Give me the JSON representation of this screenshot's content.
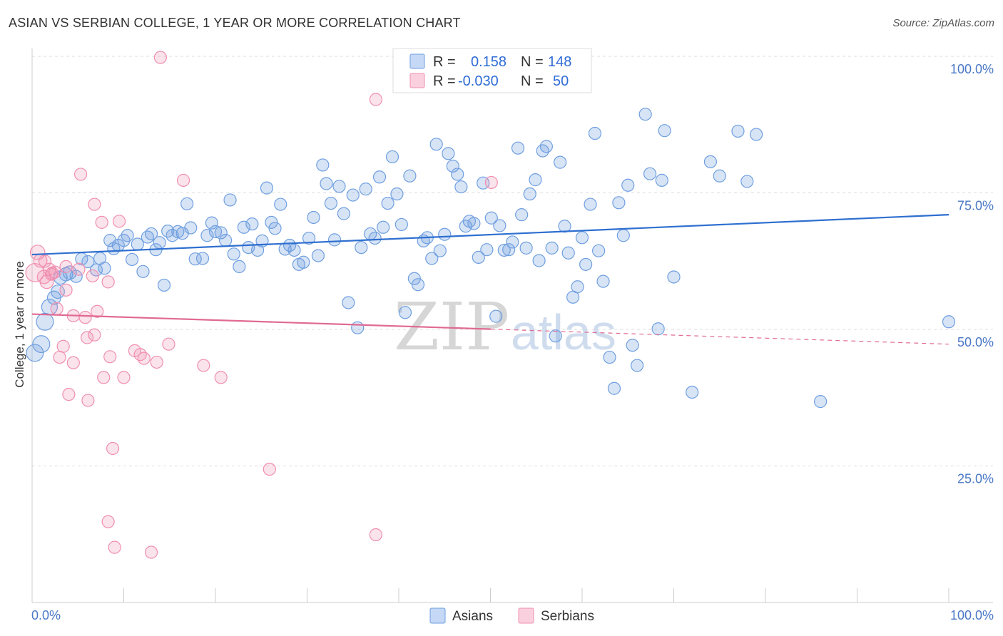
{
  "title": "ASIAN VS SERBIAN COLLEGE, 1 YEAR OR MORE CORRELATION CHART",
  "source": "Source: ZipAtlas.com",
  "watermark": {
    "zip": "ZIP",
    "atlas": "atlas"
  },
  "legend_top": {
    "r_label": "R =",
    "n_label": "N =",
    "rows": [
      {
        "name": "Asians",
        "r": "0.158",
        "n": "148",
        "color": "#6f9fe0"
      },
      {
        "name": "Serbians",
        "r": "-0.030",
        "n": "50",
        "color": "#f08fb0"
      }
    ]
  },
  "legend_bottom": [
    "Asians",
    "Serbians"
  ],
  "chart_data": {
    "type": "scatter",
    "title": "ASIAN VS SERBIAN COLLEGE, 1 YEAR OR MORE CORRELATION CHART",
    "xlabel": "",
    "ylabel": "College, 1 year or more",
    "xlim": [
      0,
      100
    ],
    "ylim": [
      0,
      100
    ],
    "x_tick_labels": [
      "0.0%",
      "100.0%"
    ],
    "y_tick_labels": [
      "25.0%",
      "50.0%",
      "75.0%",
      "100.0%"
    ],
    "y_gridlines": [
      25,
      50,
      75,
      100
    ],
    "series": [
      {
        "name": "Asians",
        "color": "#6f9fe0",
        "line_color": "#2e6fd0",
        "trend": {
          "x0": 0,
          "y0": 63.7,
          "x1": 100,
          "y1": 71.0,
          "dashed_from": null
        },
        "points": [
          [
            0.3,
            45.7,
            1.4
          ],
          [
            1.0,
            47.3,
            1.4
          ],
          [
            1.4,
            51.4,
            1.4
          ],
          [
            1.9,
            54.1,
            1.3
          ],
          [
            2.4,
            55.8,
            1.1
          ],
          [
            2.8,
            56.9,
            1.1
          ],
          [
            3.1,
            59.5,
            1.1
          ],
          [
            3.7,
            60.1,
            1.1
          ],
          [
            4.1,
            60.4,
            1.1
          ],
          [
            4.8,
            59.7,
            1.0
          ],
          [
            5.4,
            62.9,
            1.0
          ],
          [
            6.1,
            62.4,
            1.0
          ],
          [
            7.0,
            60.9,
            1.0
          ],
          [
            7.4,
            63.0,
            1.0
          ],
          [
            7.9,
            61.2,
            1.0
          ],
          [
            8.5,
            66.3,
            1.0
          ],
          [
            8.9,
            64.8,
            1.0
          ],
          [
            9.4,
            65.4,
            1.0
          ],
          [
            10.0,
            66.3,
            1.0
          ],
          [
            10.4,
            67.2,
            1.0
          ],
          [
            10.9,
            62.8,
            1.0
          ],
          [
            11.5,
            65.6,
            1.0
          ],
          [
            12.1,
            60.6,
            1.0
          ],
          [
            12.6,
            66.9,
            1.0
          ],
          [
            13.0,
            67.5,
            1.0
          ],
          [
            13.5,
            64.6,
            1.0
          ],
          [
            13.9,
            65.9,
            1.0
          ],
          [
            14.4,
            58.1,
            1.0
          ],
          [
            14.8,
            68.0,
            1.0
          ],
          [
            15.3,
            67.2,
            1.0
          ],
          [
            15.9,
            67.9,
            1.0
          ],
          [
            16.4,
            67.6,
            1.0
          ],
          [
            16.9,
            73.0,
            1.0
          ],
          [
            17.3,
            68.6,
            1.0
          ],
          [
            17.8,
            62.9,
            1.0
          ],
          [
            18.6,
            63.0,
            1.0
          ],
          [
            19.1,
            67.2,
            1.0
          ],
          [
            19.6,
            69.5,
            1.0
          ],
          [
            20.0,
            67.9,
            1.0
          ],
          [
            20.6,
            67.7,
            1.0
          ],
          [
            21.1,
            66.3,
            1.0
          ],
          [
            21.6,
            73.7,
            1.0
          ],
          [
            22.0,
            63.8,
            1.0
          ],
          [
            22.6,
            61.5,
            1.0
          ],
          [
            23.1,
            68.7,
            1.0
          ],
          [
            23.6,
            65.0,
            1.0
          ],
          [
            24.0,
            69.3,
            1.0
          ],
          [
            24.6,
            64.5,
            1.0
          ],
          [
            25.1,
            66.2,
            1.0
          ],
          [
            25.6,
            75.9,
            1.0
          ],
          [
            26.1,
            69.6,
            1.0
          ],
          [
            26.5,
            68.5,
            1.0
          ],
          [
            27.1,
            72.9,
            1.0
          ],
          [
            27.6,
            64.7,
            1.0
          ],
          [
            28.1,
            65.4,
            1.0
          ],
          [
            28.6,
            64.5,
            1.0
          ],
          [
            29.1,
            61.9,
            1.0
          ],
          [
            29.6,
            62.3,
            1.0
          ],
          [
            30.2,
            66.7,
            1.0
          ],
          [
            30.7,
            70.5,
            1.0
          ],
          [
            31.2,
            63.5,
            1.0
          ],
          [
            31.7,
            80.1,
            1.0
          ],
          [
            32.1,
            76.7,
            1.0
          ],
          [
            32.6,
            73.1,
            1.0
          ],
          [
            33.0,
            66.4,
            1.0
          ],
          [
            33.5,
            76.2,
            1.0
          ],
          [
            34.0,
            71.2,
            1.0
          ],
          [
            34.5,
            54.9,
            1.0
          ],
          [
            35.0,
            74.6,
            1.0
          ],
          [
            35.5,
            50.3,
            1.0
          ],
          [
            35.9,
            65.0,
            1.0
          ],
          [
            36.4,
            75.7,
            1.0
          ],
          [
            36.9,
            67.5,
            1.0
          ],
          [
            37.4,
            66.7,
            1.0
          ],
          [
            37.9,
            77.9,
            1.0
          ],
          [
            38.3,
            68.7,
            1.0
          ],
          [
            38.8,
            73.1,
            1.0
          ],
          [
            39.3,
            81.6,
            1.0
          ],
          [
            39.8,
            74.8,
            1.0
          ],
          [
            40.3,
            69.2,
            1.0
          ],
          [
            40.7,
            53.1,
            1.0
          ],
          [
            41.2,
            78.1,
            1.0
          ],
          [
            41.7,
            59.3,
            1.0
          ],
          [
            42.1,
            58.2,
            1.0
          ],
          [
            42.7,
            66.2,
            1.0
          ],
          [
            43.1,
            66.8,
            1.0
          ],
          [
            43.6,
            63.0,
            1.0
          ],
          [
            44.1,
            83.9,
            1.0
          ],
          [
            44.5,
            64.4,
            1.0
          ],
          [
            45.0,
            67.4,
            1.0
          ],
          [
            45.4,
            82.2,
            1.0
          ],
          [
            45.9,
            79.9,
            1.0
          ],
          [
            46.4,
            78.4,
            1.0
          ],
          [
            46.8,
            76.1,
            1.0
          ],
          [
            47.3,
            68.9,
            1.0
          ],
          [
            47.7,
            69.8,
            1.0
          ],
          [
            48.2,
            69.4,
            1.0
          ],
          [
            48.7,
            63.2,
            1.0
          ],
          [
            49.2,
            76.8,
            1.0
          ],
          [
            49.6,
            64.6,
            1.0
          ],
          [
            50.1,
            70.4,
            1.0
          ],
          [
            50.6,
            52.4,
            1.0
          ],
          [
            51.0,
            69.0,
            1.0
          ],
          [
            51.5,
            64.5,
            1.0
          ],
          [
            52.0,
            64.6,
            1.0
          ],
          [
            52.4,
            66.0,
            1.0
          ],
          [
            53.0,
            83.2,
            1.0
          ],
          [
            53.4,
            71.0,
            1.0
          ],
          [
            53.9,
            64.9,
            1.0
          ],
          [
            54.3,
            74.8,
            1.0
          ],
          [
            54.9,
            77.4,
            1.0
          ],
          [
            55.3,
            62.6,
            1.0
          ],
          [
            55.7,
            82.7,
            1.0
          ],
          [
            56.1,
            83.5,
            1.0
          ],
          [
            56.7,
            64.9,
            1.0
          ],
          [
            57.1,
            48.8,
            1.0
          ],
          [
            57.6,
            80.6,
            1.0
          ],
          [
            58.1,
            68.9,
            1.0
          ],
          [
            58.5,
            64.0,
            1.0
          ],
          [
            59.0,
            55.9,
            1.0
          ],
          [
            59.5,
            57.8,
            1.0
          ],
          [
            60.0,
            66.8,
            1.0
          ],
          [
            60.4,
            61.9,
            1.0
          ],
          [
            60.9,
            72.9,
            1.0
          ],
          [
            61.4,
            85.9,
            1.0
          ],
          [
            61.8,
            64.4,
            1.0
          ],
          [
            62.3,
            58.8,
            1.0
          ],
          [
            63.0,
            44.9,
            1.0
          ],
          [
            63.5,
            39.2,
            1.0
          ],
          [
            64.0,
            73.2,
            1.0
          ],
          [
            64.5,
            67.2,
            1.0
          ],
          [
            65.0,
            76.4,
            1.0
          ],
          [
            65.5,
            47.1,
            1.0
          ],
          [
            66.0,
            43.4,
            1.0
          ],
          [
            66.9,
            89.4,
            1.0
          ],
          [
            67.4,
            78.5,
            1.0
          ],
          [
            68.3,
            50.1,
            1.0
          ],
          [
            68.7,
            77.3,
            1.0
          ],
          [
            69.0,
            86.4,
            1.0
          ],
          [
            70.0,
            59.6,
            1.0
          ],
          [
            72.0,
            38.5,
            1.0
          ],
          [
            74.0,
            80.7,
            1.0
          ],
          [
            75.0,
            78.1,
            1.0
          ],
          [
            77.0,
            86.3,
            1.0
          ],
          [
            78.0,
            77.1,
            1.0
          ],
          [
            79.0,
            85.7,
            1.0
          ],
          [
            86.0,
            36.8,
            1.0
          ],
          [
            100.0,
            51.4,
            1.0
          ]
        ]
      },
      {
        "name": "Serbians",
        "color": "#f08fb0",
        "line_color": "#e06a94",
        "trend": {
          "x0": 0,
          "y0": 52.8,
          "x1": 100,
          "y1": 47.3,
          "dashed_from": 50
        },
        "points": [
          [
            0.3,
            60.4,
            1.5
          ],
          [
            0.6,
            64.1,
            1.2
          ],
          [
            0.9,
            62.6,
            1.1
          ],
          [
            1.3,
            59.6,
            1.1
          ],
          [
            1.6,
            58.7,
            1.1
          ],
          [
            1.9,
            61.0,
            1.0
          ],
          [
            2.2,
            60.3,
            1.0
          ],
          [
            2.5,
            60.5,
            1.0
          ],
          [
            2.7,
            53.8,
            1.0
          ],
          [
            3.0,
            44.9,
            1.0
          ],
          [
            3.4,
            46.9,
            1.0
          ],
          [
            3.7,
            57.2,
            1.0
          ],
          [
            4.0,
            38.1,
            1.0
          ],
          [
            4.5,
            52.5,
            1.0
          ],
          [
            4.5,
            43.9,
            1.0
          ],
          [
            5.1,
            61.0,
            1.0
          ],
          [
            5.3,
            78.4,
            1.0
          ],
          [
            5.8,
            52.2,
            1.0
          ],
          [
            6.0,
            48.5,
            1.0
          ],
          [
            6.1,
            37.0,
            1.0
          ],
          [
            6.6,
            59.8,
            1.0
          ],
          [
            6.8,
            72.9,
            1.0
          ],
          [
            6.8,
            49.0,
            1.0
          ],
          [
            7.1,
            53.3,
            1.0
          ],
          [
            7.6,
            69.6,
            1.0
          ],
          [
            7.8,
            41.2,
            1.0
          ],
          [
            8.3,
            58.7,
            1.0
          ],
          [
            8.3,
            14.8,
            1.0
          ],
          [
            8.5,
            45.0,
            1.0
          ],
          [
            8.8,
            28.2,
            1.0
          ],
          [
            9.0,
            10.1,
            1.0
          ],
          [
            9.5,
            69.8,
            1.0
          ],
          [
            10.0,
            41.2,
            1.0
          ],
          [
            11.2,
            46.1,
            1.0
          ],
          [
            11.8,
            45.4,
            1.0
          ],
          [
            12.2,
            44.7,
            1.0
          ],
          [
            13.0,
            9.2,
            1.0
          ],
          [
            13.6,
            44.0,
            1.0
          ],
          [
            14.0,
            99.8,
            1.0
          ],
          [
            14.9,
            47.3,
            1.0
          ],
          [
            16.5,
            77.3,
            1.0
          ],
          [
            18.7,
            43.4,
            1.0
          ],
          [
            20.6,
            41.2,
            1.0
          ],
          [
            25.9,
            24.4,
            1.0
          ],
          [
            37.5,
            12.4,
            1.0
          ],
          [
            37.5,
            92.1,
            1.0
          ],
          [
            50.1,
            76.9,
            1.0
          ],
          [
            3.7,
            61.5,
            1.0
          ],
          [
            1.4,
            62.5,
            1.0
          ],
          [
            2.1,
            60.1,
            1.0
          ]
        ]
      }
    ]
  }
}
